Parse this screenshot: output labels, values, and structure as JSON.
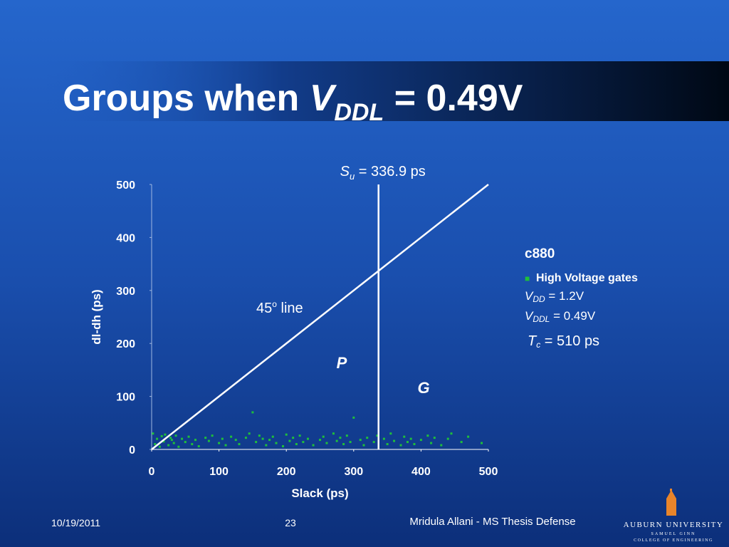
{
  "title": {
    "pre": "Groups when ",
    "v": "V",
    "sub": "DDL",
    "post": " = 0.49V"
  },
  "chart_data": {
    "type": "scatter",
    "x_label": "Slack (ps)",
    "y_label": "dl-dh (ps)",
    "x": [
      2,
      5,
      8,
      12,
      15,
      18,
      20,
      25,
      28,
      30,
      33,
      36,
      40,
      45,
      50,
      55,
      60,
      65,
      70,
      80,
      85,
      90,
      100,
      105,
      110,
      118,
      125,
      130,
      140,
      145,
      150,
      155,
      160,
      165,
      170,
      175,
      180,
      185,
      195,
      200,
      205,
      210,
      215,
      220,
      225,
      232,
      240,
      250,
      255,
      260,
      270,
      275,
      280,
      285,
      290,
      295,
      300,
      310,
      315,
      320,
      330,
      335,
      345,
      350,
      355,
      360,
      370,
      375,
      380,
      385,
      390,
      400,
      410,
      415,
      420,
      430,
      440,
      445,
      460,
      470,
      490
    ],
    "series": [
      {
        "name": "High Voltage gates",
        "color": "#1fbf3a",
        "values": [
          30,
          10,
          20,
          5,
          25,
          15,
          28,
          8,
          22,
          18,
          12,
          26,
          5,
          20,
          14,
          24,
          10,
          18,
          6,
          22,
          16,
          26,
          12,
          20,
          8,
          24,
          18,
          10,
          22,
          30,
          70,
          14,
          26,
          20,
          8,
          18,
          24,
          12,
          6,
          28,
          16,
          22,
          10,
          26,
          14,
          20,
          8,
          18,
          24,
          12,
          30,
          16,
          22,
          10,
          26,
          14,
          60,
          18,
          8,
          22,
          14,
          26,
          20,
          10,
          30,
          16,
          8,
          24,
          14,
          20,
          10,
          18,
          26,
          12,
          22,
          8,
          20,
          30,
          14,
          24,
          12
        ]
      }
    ],
    "xlim": [
      0,
      500
    ],
    "ylim": [
      0,
      500
    ],
    "xticks": [
      0,
      100,
      200,
      300,
      400,
      500
    ],
    "yticks": [
      0,
      100,
      200,
      300,
      400,
      500
    ],
    "threshold": {
      "value": 336.9,
      "symbol": "S",
      "sub": "u",
      "label": " = 336.9 ps"
    },
    "diagonal": {
      "label": "45",
      "sup": "o",
      "label_end": " line"
    },
    "regions": [
      "P",
      "G"
    ]
  },
  "notes": {
    "circuit": "c880",
    "vdd": {
      "symbol": "V",
      "sub": "DD",
      "text": " = 1.2V"
    },
    "vddl": {
      "symbol": "V",
      "sub": "DDL",
      "text": " = 0.49V"
    },
    "tc": {
      "symbol": "T",
      "sub": "c",
      "text": " = 510 ps"
    }
  },
  "footer": {
    "date": "10/19/2011",
    "page": "23",
    "author": "Mridula Allani - MS Thesis Defense",
    "logo": [
      "AUBURN UNIVERSITY",
      "SAMUEL GINN",
      "COLLEGE OF ENGINEERING"
    ]
  }
}
